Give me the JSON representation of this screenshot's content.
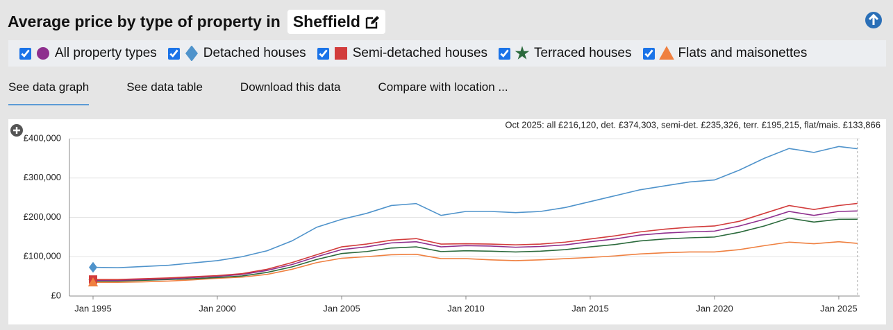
{
  "header": {
    "title": "Average price by type of property in",
    "location": "Sheffield"
  },
  "tabs": [
    "See data graph",
    "See data table",
    "Download this data",
    "Compare with location ..."
  ],
  "chart_data": {
    "type": "line",
    "annotation": "Oct 2025: all £216,120, det. £374,303, semi-det. £235,326, terr. £195,215, flat/mais. £133,866",
    "x": [
      1995,
      1996,
      1997,
      1998,
      1999,
      2000,
      2001,
      2002,
      2003,
      2004,
      2005,
      2006,
      2007,
      2008,
      2009,
      2010,
      2011,
      2012,
      2013,
      2014,
      2015,
      2016,
      2017,
      2018,
      2019,
      2020,
      2021,
      2022,
      2023,
      2024,
      2025,
      2025.75
    ],
    "xlim": [
      1994.05,
      2025.84
    ],
    "xticks": [
      {
        "value": 1995,
        "label": "Jan 1995"
      },
      {
        "value": 2000,
        "label": "Jan 2000"
      },
      {
        "value": 2005,
        "label": "Jan 2005"
      },
      {
        "value": 2010,
        "label": "Jan 2010"
      },
      {
        "value": 2015,
        "label": "Jan 2015"
      },
      {
        "value": 2020,
        "label": "Jan 2020"
      },
      {
        "value": 2025,
        "label": "Jan 2025"
      }
    ],
    "ylim": [
      0,
      400000
    ],
    "yticks": [
      {
        "value": 0,
        "label": "£0"
      },
      {
        "value": 100000,
        "label": "£100,000"
      },
      {
        "value": 200000,
        "label": "£200,000"
      },
      {
        "value": 300000,
        "label": "£300,000"
      },
      {
        "value": 400000,
        "label": "£400,000"
      }
    ],
    "grid": true,
    "series": [
      {
        "name": "All property types",
        "color": "#8e2f8e",
        "marker": "circle",
        "values": [
          40000,
          40000,
          42000,
          44000,
          47000,
          50000,
          55000,
          65000,
          80000,
          100000,
          118000,
          125000,
          135000,
          138000,
          125000,
          128000,
          127000,
          124000,
          126000,
          130000,
          138000,
          145000,
          155000,
          160000,
          163000,
          165000,
          178000,
          195000,
          215000,
          205000,
          215000,
          216120
        ]
      },
      {
        "name": "Detached houses",
        "color": "#4f93cb",
        "marker": "diamond",
        "values": [
          73000,
          72000,
          75000,
          78000,
          84000,
          90000,
          100000,
          115000,
          140000,
          175000,
          195000,
          210000,
          230000,
          235000,
          205000,
          215000,
          215000,
          212000,
          215000,
          225000,
          240000,
          255000,
          270000,
          280000,
          290000,
          295000,
          320000,
          350000,
          375000,
          365000,
          380000,
          374303
        ]
      },
      {
        "name": "Semi-detached houses",
        "color": "#d23c3c",
        "marker": "square",
        "values": [
          42000,
          42000,
          44000,
          46000,
          49000,
          52000,
          57000,
          68000,
          85000,
          105000,
          125000,
          132000,
          142000,
          146000,
          132000,
          133000,
          132000,
          130000,
          132000,
          137000,
          145000,
          153000,
          163000,
          170000,
          175000,
          178000,
          190000,
          210000,
          230000,
          220000,
          230000,
          235326
        ]
      },
      {
        "name": "Terraced houses",
        "color": "#2b6a3c",
        "marker": "star",
        "values": [
          38000,
          38000,
          40000,
          42000,
          44000,
          47000,
          51000,
          60000,
          74000,
          93000,
          108000,
          113000,
          122000,
          125000,
          113000,
          115000,
          114000,
          112000,
          114000,
          118000,
          125000,
          131000,
          140000,
          145000,
          148000,
          150000,
          162000,
          178000,
          198000,
          188000,
          195000,
          195215
        ]
      },
      {
        "name": "Flats and maisonettes",
        "color": "#ef8040",
        "marker": "triangle",
        "values": [
          35000,
          35000,
          36000,
          38000,
          41000,
          45000,
          48000,
          55000,
          68000,
          85000,
          96000,
          100000,
          105000,
          106000,
          95000,
          95000,
          92000,
          90000,
          92000,
          95000,
          98000,
          102000,
          107000,
          110000,
          112000,
          112000,
          118000,
          128000,
          137000,
          133000,
          138000,
          133866
        ]
      }
    ]
  }
}
